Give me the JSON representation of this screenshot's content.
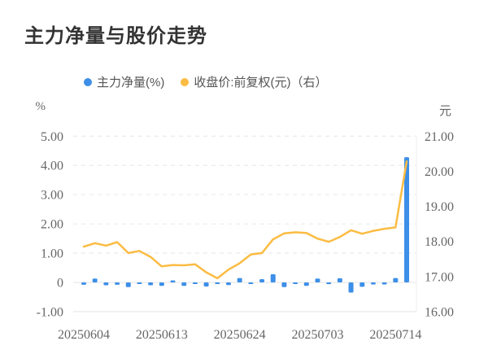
{
  "header": {
    "title": "主力净量与股价走势"
  },
  "legend": [
    {
      "label": "主力净量(%)",
      "color": "#3D8FE8",
      "series": "bar"
    },
    {
      "label": "收盘价:前复权(元)（右）",
      "color": "#FBBC43",
      "series": "line"
    }
  ],
  "chart_data": {
    "type": "bar",
    "subtype": "bar-and-line dual axis",
    "title": "主力净量与股价走势",
    "n_points": 30,
    "x_tick_labels": [
      "20250604",
      "20250613",
      "20250624",
      "20250703",
      "20250714"
    ],
    "x_tick_indices": [
      0,
      7,
      14,
      21,
      28
    ],
    "left_axis": {
      "unit": "%",
      "min": -1,
      "max": 5,
      "tick_labels": [
        "5.00",
        "4.00",
        "3.00",
        "2.00",
        "1.00",
        "0",
        "-1.00"
      ],
      "tick_values": [
        5,
        4,
        3,
        2,
        1,
        0,
        -1
      ]
    },
    "right_axis": {
      "unit": "元",
      "min": 16,
      "max": 21,
      "tick_labels": [
        "21.00",
        "20.00",
        "19.00",
        "18.00",
        "17.00",
        "16.00"
      ],
      "tick_values": [
        21,
        20,
        19,
        18,
        17,
        16
      ]
    },
    "grid": "horizontal dashed gridlines, light solid zero line and bottom line",
    "legend_position": "top center",
    "series": [
      {
        "name": "主力净量(%)",
        "type": "bar",
        "axis": "left",
        "color": "#3D8FE8",
        "values": [
          -0.08,
          0.13,
          -0.1,
          -0.08,
          -0.16,
          -0.04,
          -0.1,
          -0.12,
          0.07,
          -0.12,
          -0.05,
          -0.14,
          -0.05,
          -0.09,
          0.15,
          -0.04,
          0.11,
          0.28,
          -0.16,
          -0.05,
          -0.12,
          0.13,
          -0.06,
          0.14,
          -0.35,
          -0.15,
          -0.07,
          -0.07,
          0.15,
          4.28
        ]
      },
      {
        "name": "收盘价:前复权(元)",
        "type": "line",
        "axis": "right",
        "color": "#FBBC43",
        "values": [
          17.85,
          17.95,
          17.88,
          17.98,
          17.67,
          17.73,
          17.56,
          17.29,
          17.33,
          17.32,
          17.35,
          17.12,
          16.95,
          17.2,
          17.38,
          17.63,
          17.67,
          18.06,
          18.23,
          18.26,
          18.24,
          18.08,
          17.99,
          18.13,
          18.32,
          18.22,
          18.3,
          18.36,
          18.4,
          20.28
        ]
      }
    ]
  }
}
